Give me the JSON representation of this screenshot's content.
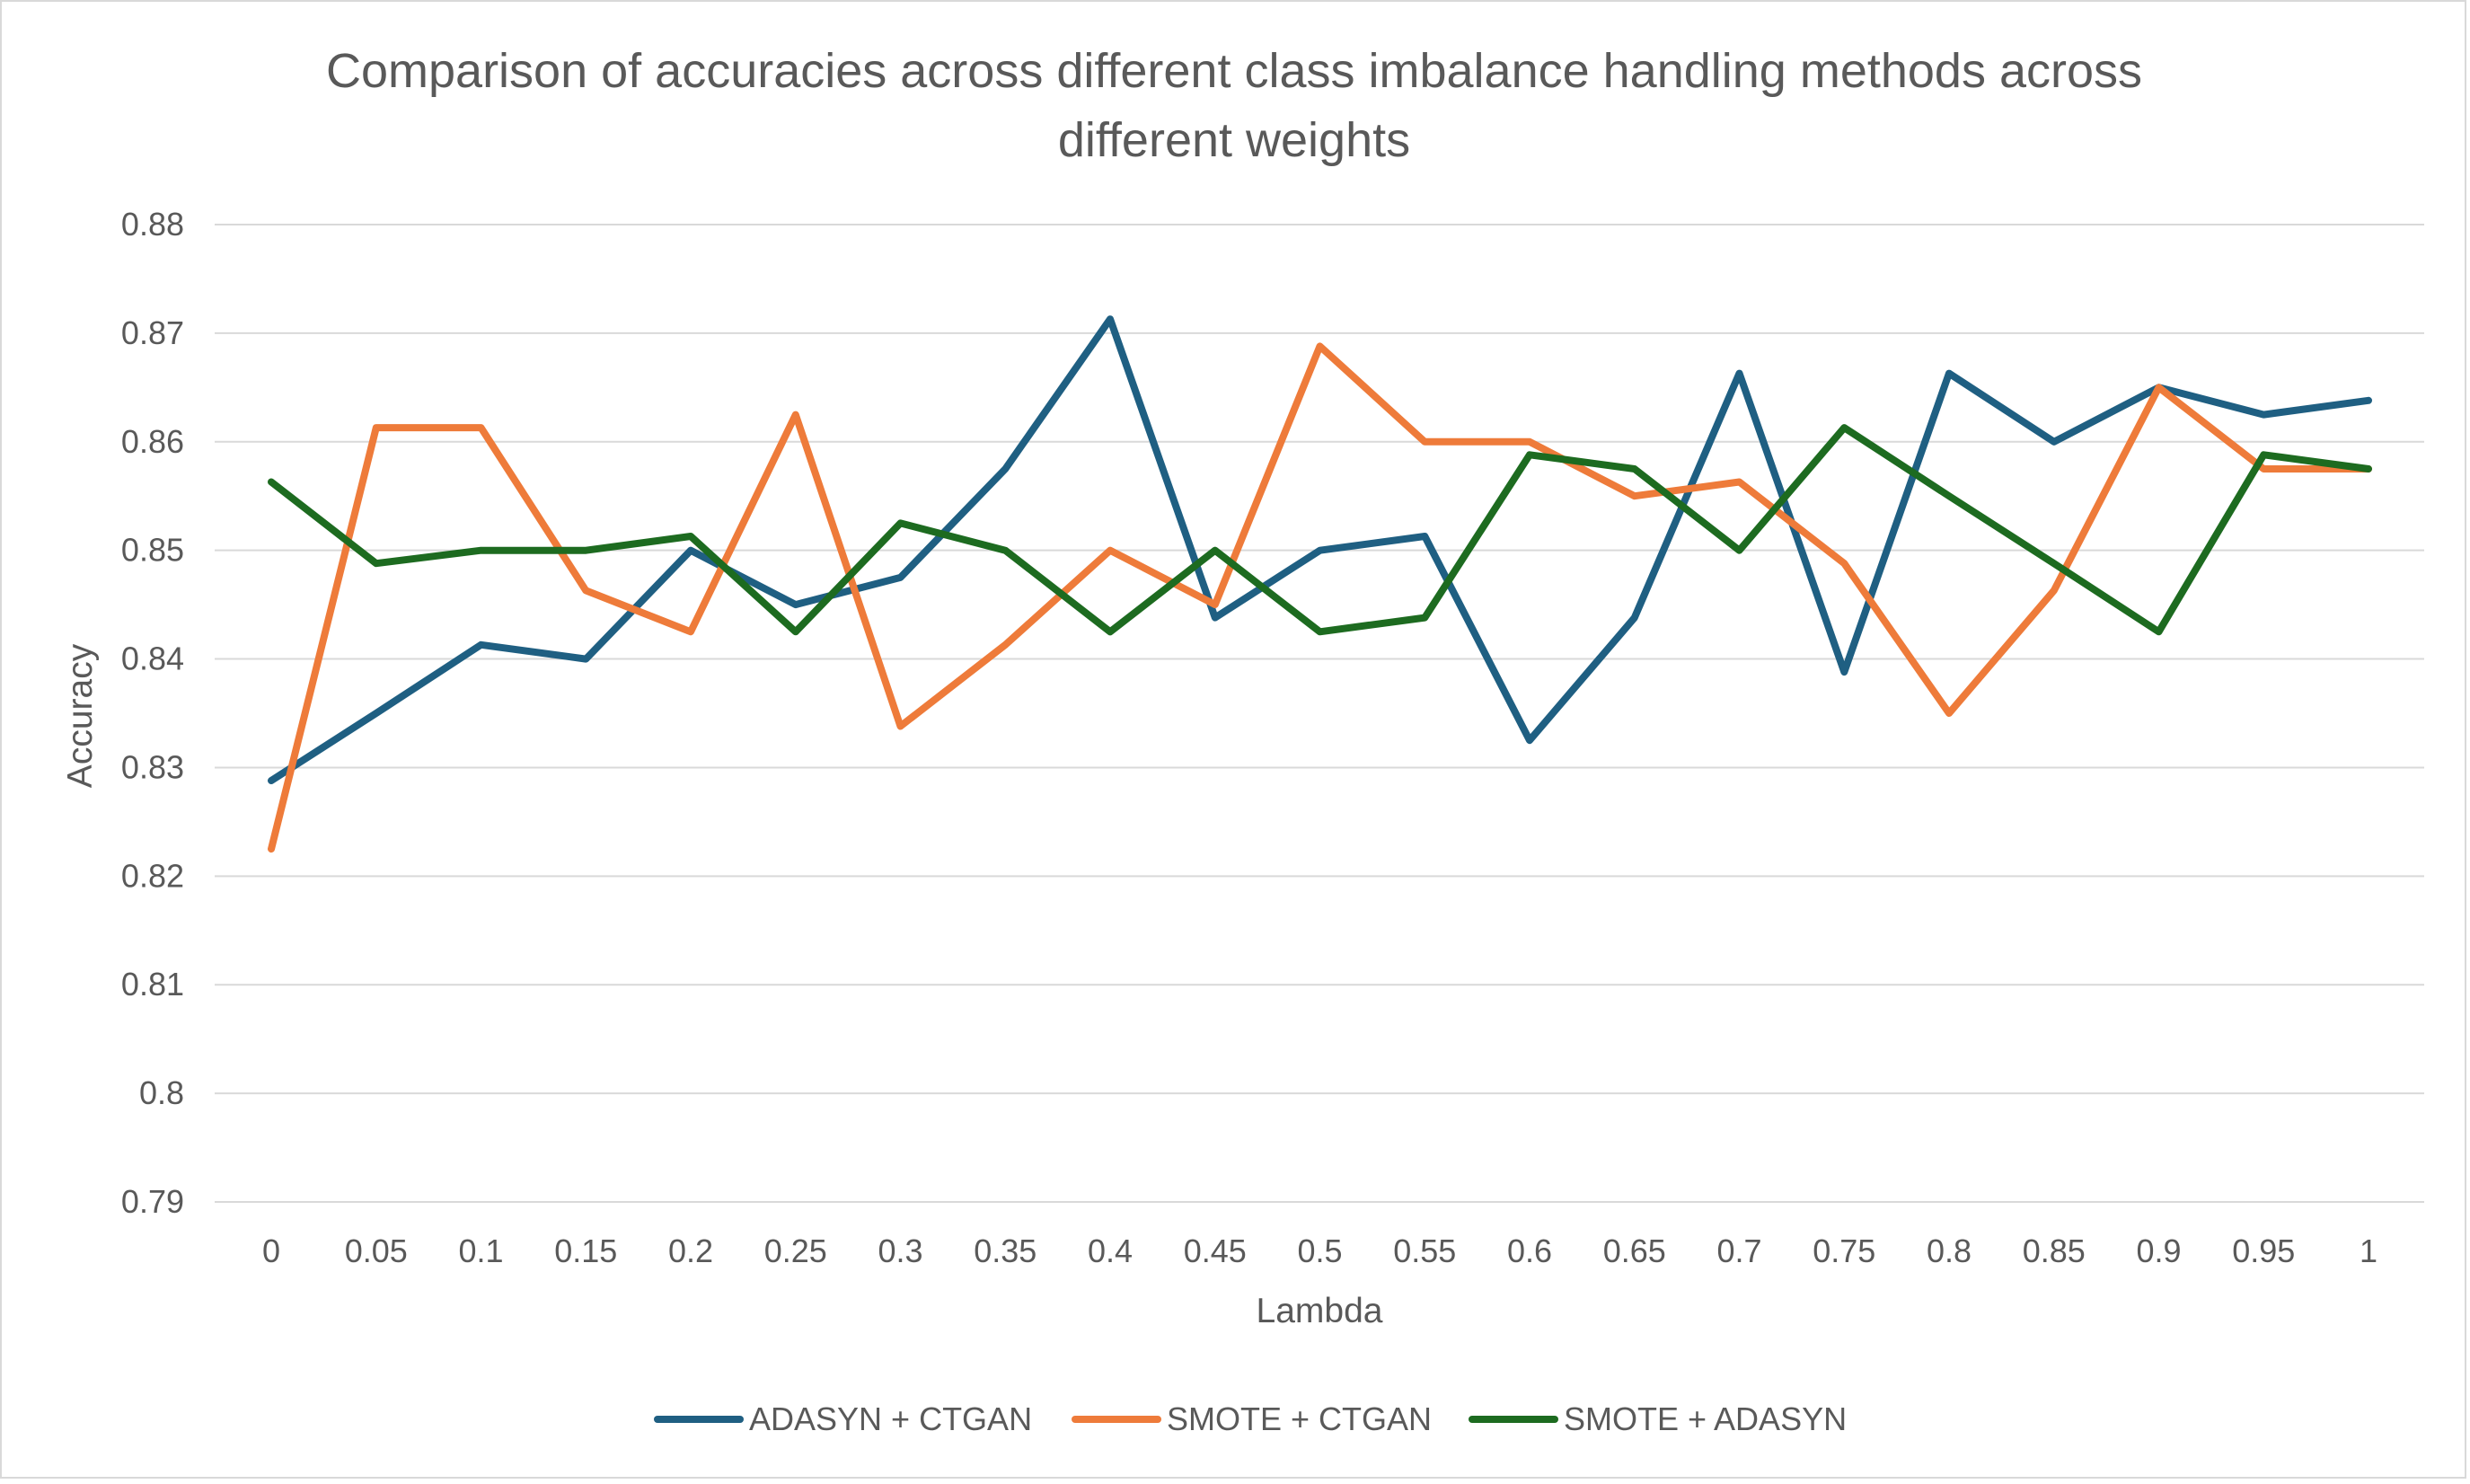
{
  "chart_data": {
    "type": "line",
    "title_lines": [
      "Comparison of accuracies across different class imbalance handling methods across",
      "different weights"
    ],
    "xlabel": "Lambda",
    "ylabel": "Accuracy",
    "categories": [
      "0",
      "0.05",
      "0.1",
      "0.15",
      "0.2",
      "0.25",
      "0.3",
      "0.35",
      "0.4",
      "0.45",
      "0.5",
      "0.55",
      "0.6",
      "0.65",
      "0.7",
      "0.75",
      "0.8",
      "0.85",
      "0.9",
      "0.95",
      "1"
    ],
    "ylim": [
      0.79,
      0.88
    ],
    "yticks": [
      "0.79",
      "0.8",
      "0.81",
      "0.82",
      "0.83",
      "0.84",
      "0.85",
      "0.86",
      "0.87",
      "0.88"
    ],
    "grid": "horizontal",
    "legend_position": "bottom",
    "series": [
      {
        "name": "ADASYN + CTGAN",
        "color": "#1F5F82",
        "values": [
          0.8288,
          0.835,
          0.8413,
          0.84,
          0.85,
          0.845,
          0.8475,
          0.8575,
          0.8713,
          0.8438,
          0.85,
          0.8513,
          0.8325,
          0.8438,
          0.8663,
          0.8388,
          0.8663,
          0.86,
          0.865,
          0.8625,
          0.8638
        ]
      },
      {
        "name": "SMOTE + CTGAN",
        "color": "#EE7B3A",
        "values": [
          0.8225,
          0.8613,
          0.8613,
          0.8463,
          0.8425,
          0.8625,
          0.8338,
          0.8413,
          0.85,
          0.845,
          0.8688,
          0.86,
          0.86,
          0.855,
          0.8563,
          0.8488,
          0.835,
          0.8463,
          0.865,
          0.8575,
          0.8575
        ]
      },
      {
        "name": "SMOTE + ADASYN",
        "color": "#1D6B20",
        "values": [
          0.8563,
          0.8488,
          0.85,
          0.85,
          0.8513,
          0.8425,
          0.8525,
          0.85,
          0.8425,
          0.85,
          0.8425,
          0.8438,
          0.8588,
          0.8575,
          0.85,
          0.8613,
          0.855,
          0.8488,
          0.8425,
          0.8588,
          0.8575
        ]
      }
    ]
  }
}
